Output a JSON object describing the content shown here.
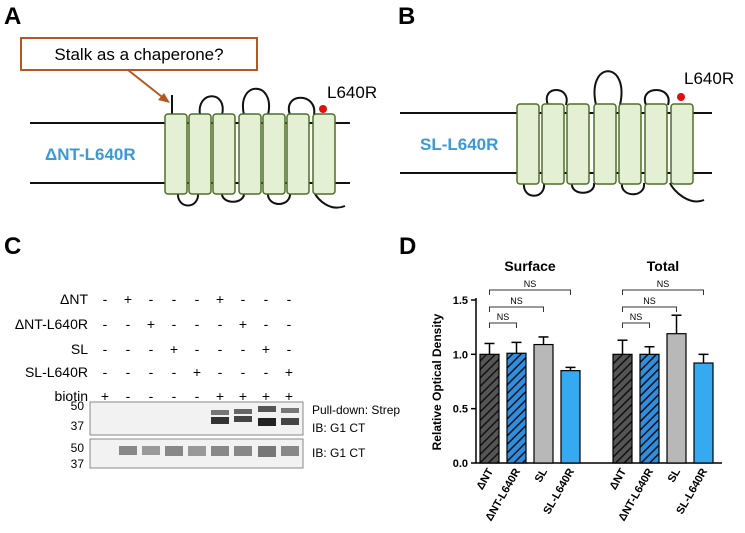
{
  "panel_a": {
    "label": "A",
    "callout": "Stalk as a chaperone?",
    "mutation": "L640R",
    "construct": "ΔNT-L640R"
  },
  "panel_b": {
    "label": "B",
    "mutation": "L640R",
    "construct": "SL-L640R"
  },
  "panel_c": {
    "label": "C",
    "rows": [
      {
        "name": "ΔNT",
        "cells": [
          "-",
          "+",
          "-",
          "-",
          "-",
          "+",
          "-",
          "-",
          "-"
        ]
      },
      {
        "name": "ΔNT-L640R",
        "cells": [
          "-",
          "-",
          "+",
          "-",
          "-",
          "-",
          "+",
          "-",
          "-"
        ]
      },
      {
        "name": "SL",
        "cells": [
          "-",
          "-",
          "-",
          "+",
          "-",
          "-",
          "-",
          "+",
          "-"
        ]
      },
      {
        "name": "SL-L640R",
        "cells": [
          "-",
          "-",
          "-",
          "-",
          "+",
          "-",
          "-",
          "-",
          "+"
        ]
      },
      {
        "name": "biotin",
        "cells": [
          "+",
          "-",
          "-",
          "-",
          "-",
          "+",
          "+",
          "+",
          "+"
        ]
      }
    ],
    "blots": [
      {
        "markers": [
          50,
          37
        ],
        "labels": [
          "Pull-down: Strep",
          "IB: G1 CT"
        ]
      },
      {
        "markers": [
          50,
          37
        ],
        "labels": [
          "IB: G1 CT"
        ]
      }
    ]
  },
  "panel_d_label": "D",
  "chart_data": {
    "type": "bar",
    "y_label": "Relative  Optical  Density",
    "categories": [
      "Surface",
      "Total"
    ],
    "series": [
      {
        "name": "ΔNT",
        "color": "#555555",
        "hatch": true,
        "values": [
          1.0,
          1.0
        ],
        "errors": [
          0.1,
          0.13
        ]
      },
      {
        "name": "ΔNT-L640R",
        "color": "#2f8ee0",
        "hatch": true,
        "values": [
          1.01,
          1.0
        ],
        "errors": [
          0.1,
          0.07
        ]
      },
      {
        "name": "SL",
        "color": "#b8b8b8",
        "hatch": false,
        "values": [
          1.09,
          1.19
        ],
        "errors": [
          0.07,
          0.17
        ]
      },
      {
        "name": "SL-L640R",
        "color": "#35aaf0",
        "hatch": false,
        "values": [
          0.85,
          0.92
        ],
        "errors": [
          0.03,
          0.08
        ]
      }
    ],
    "annotations": [
      "NS",
      "NS",
      "NS",
      "NS",
      "NS",
      "NS"
    ],
    "ylim": [
      0,
      1.5
    ],
    "yticks": [
      {
        "value": 0,
        "label": "0.0"
      },
      {
        "value": 0.5,
        "label": "0.5"
      },
      {
        "value": 1,
        "label": "1.0"
      },
      {
        "value": 1.5,
        "label": "1.5"
      }
    ]
  }
}
